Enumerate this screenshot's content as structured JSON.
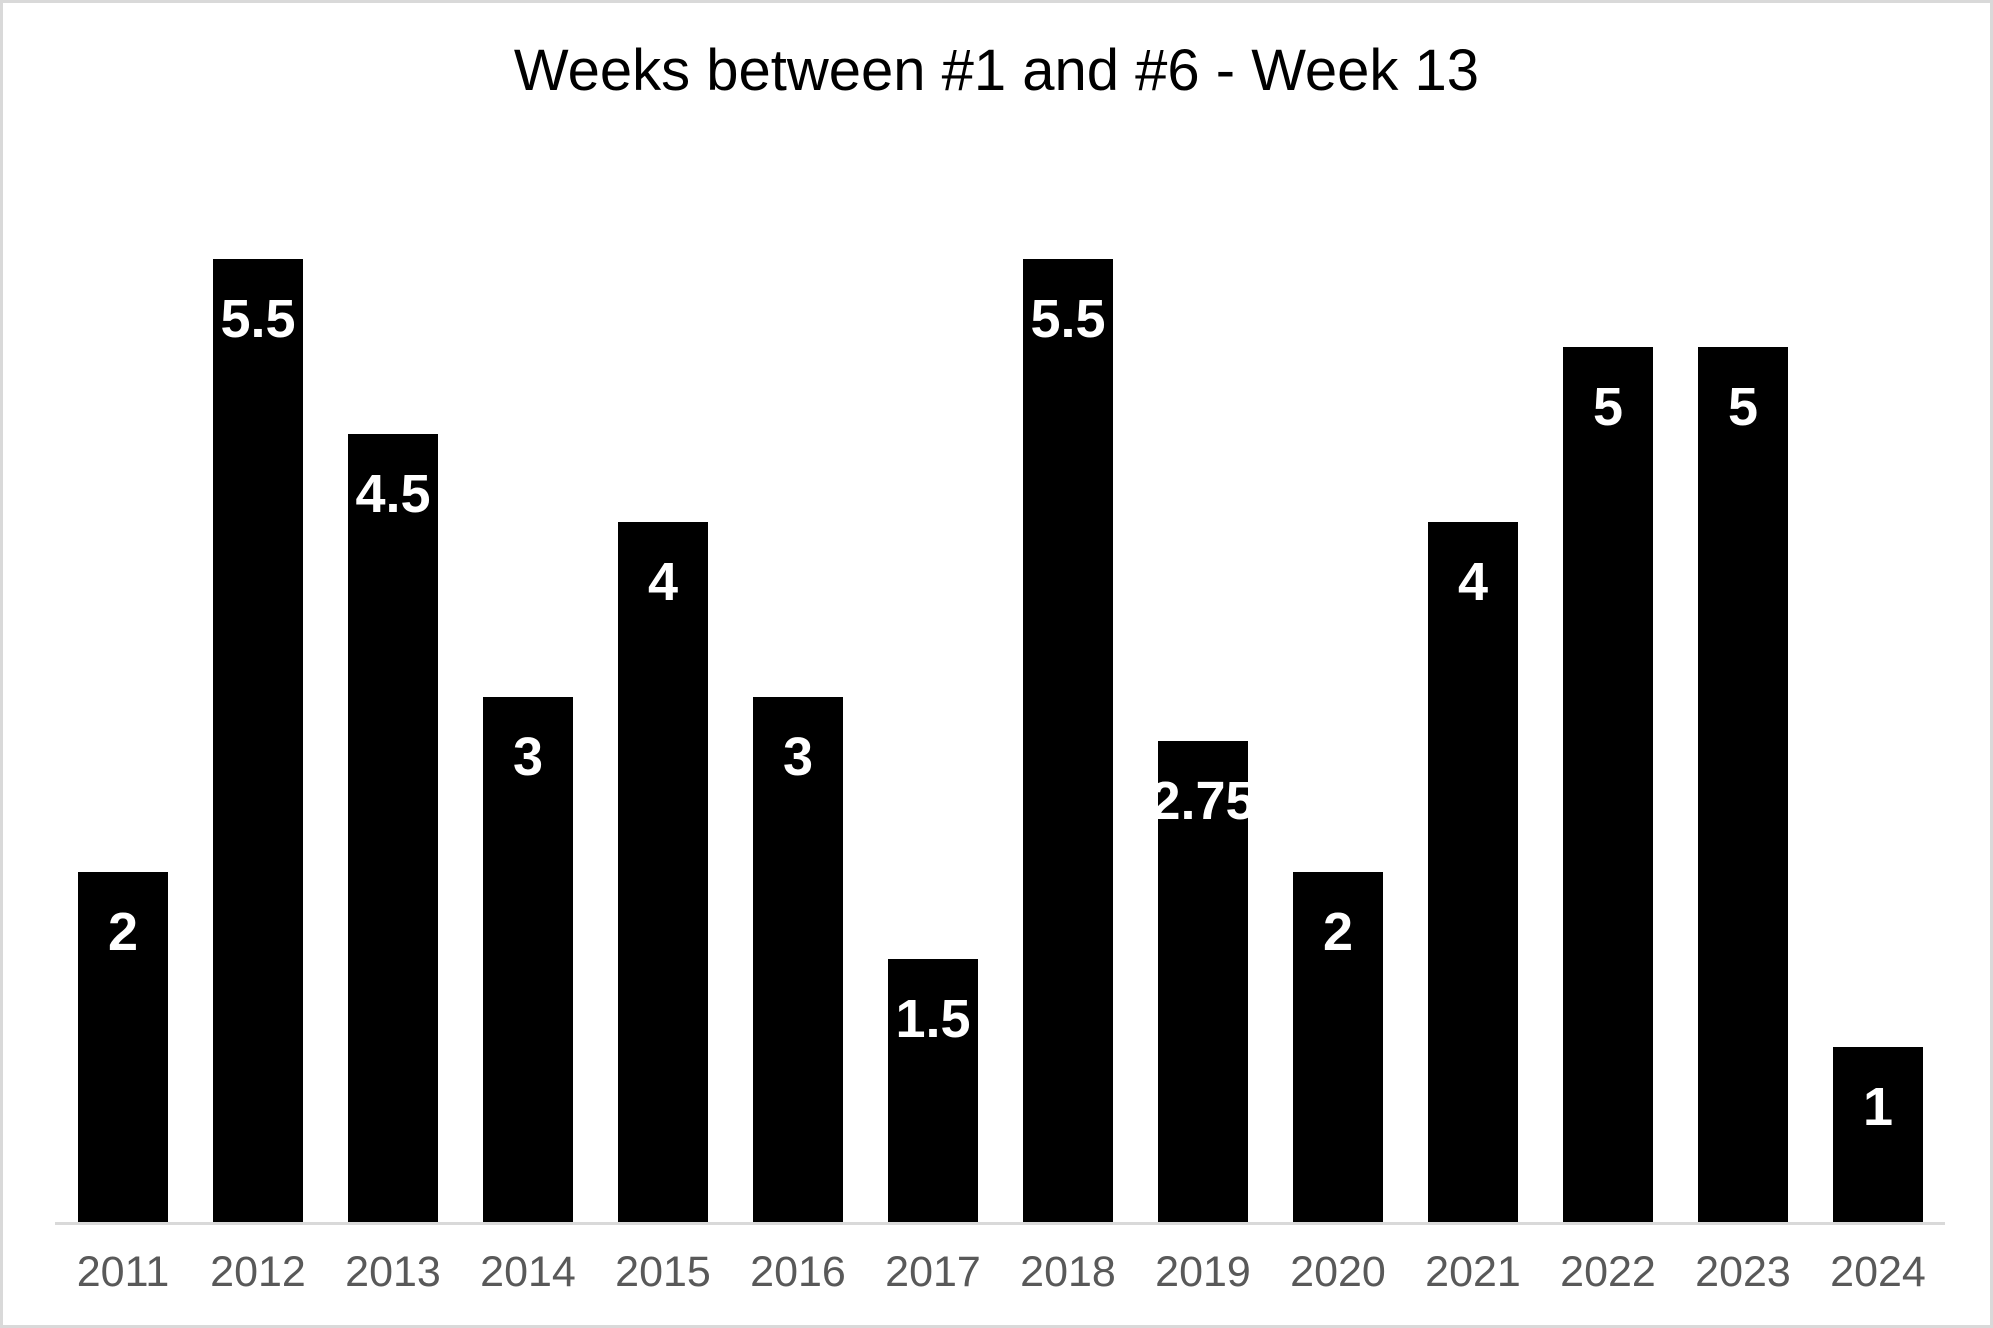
{
  "chart_data": {
    "type": "bar",
    "title": "Weeks between #1 and #6 - Week 13",
    "categories": [
      "2011",
      "2012",
      "2013",
      "2014",
      "2015",
      "2016",
      "2017",
      "2018",
      "2019",
      "2020",
      "2021",
      "2022",
      "2023",
      "2024"
    ],
    "values": [
      2,
      5.5,
      4.5,
      3,
      4,
      3,
      1.5,
      5.5,
      2.75,
      2,
      4,
      5,
      5,
      1
    ],
    "xlabel": "",
    "ylabel": "",
    "ylim": [
      0,
      6
    ],
    "grid": false,
    "legend": false,
    "data_labels_position": "inside-end",
    "colors": {
      "bar": "#000000",
      "data_label": "#ffffff",
      "axis_tick_label": "#595959",
      "axis_line": "#d9d9d9",
      "title": "#000000",
      "background": "#ffffff",
      "frame_border": "#d9d9d9"
    }
  }
}
